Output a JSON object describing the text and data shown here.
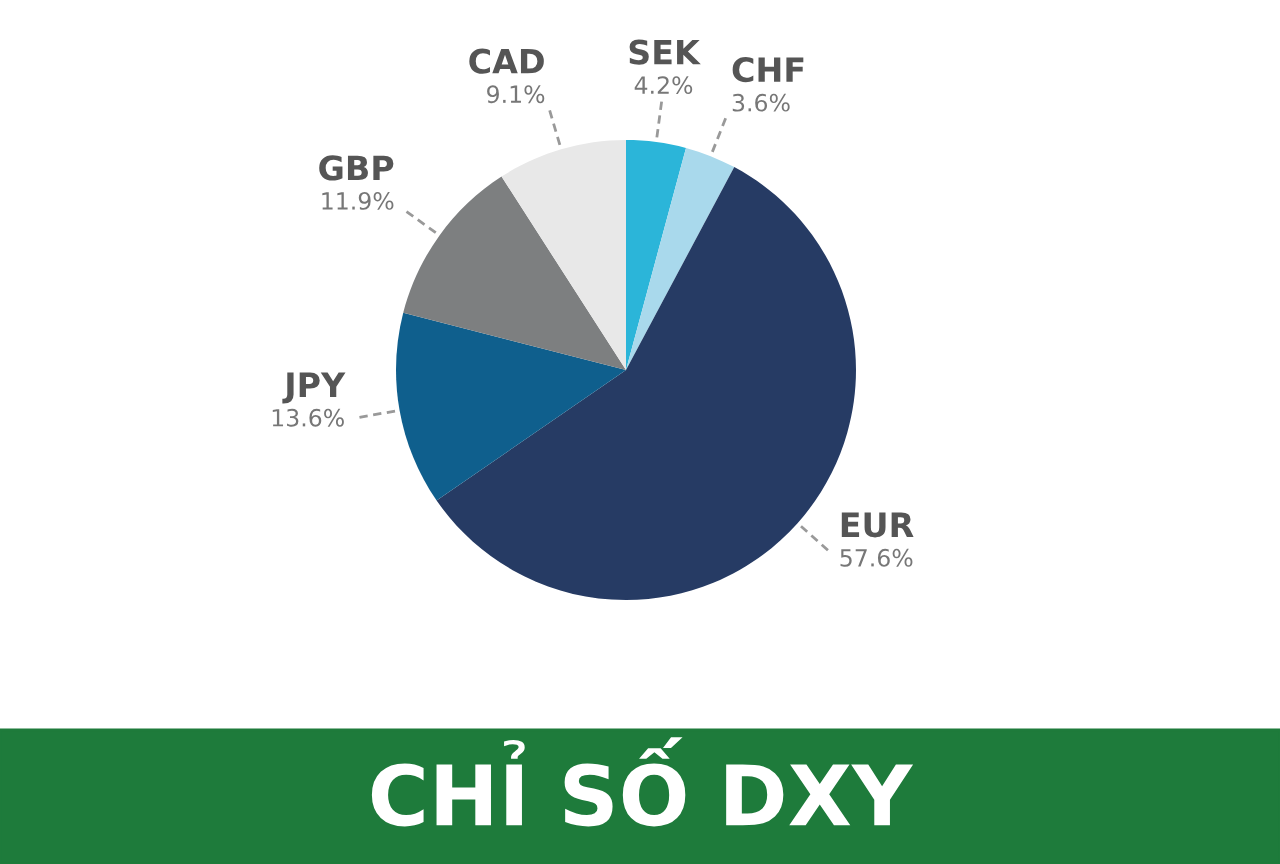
{
  "chart_data": {
    "type": "pie",
    "title": "CHỈ SỐ DXY",
    "categories": [
      "SEK",
      "CHF",
      "EUR",
      "JPY",
      "GBP",
      "CAD"
    ],
    "values": [
      4.2,
      3.6,
      57.6,
      13.6,
      11.9,
      9.1
    ],
    "value_labels": [
      "4.2%",
      "3.6%",
      "57.6%",
      "13.6%",
      "11.9%",
      "9.1%"
    ],
    "colors": [
      "#2bb5d9",
      "#a9d9ec",
      "#263b64",
      "#0f5f8d",
      "#7d7f80",
      "#e8e8e8"
    ],
    "legend": false
  }
}
